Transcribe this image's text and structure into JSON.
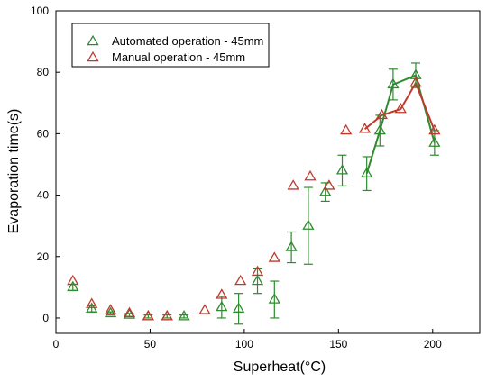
{
  "chart_data": {
    "type": "scatter",
    "xlabel": "Superheat(°C)",
    "ylabel": "Evaporation time(s)",
    "xlim": [
      0,
      225
    ],
    "ylim": [
      -5,
      100
    ],
    "xticks": [
      0,
      50,
      100,
      150,
      200
    ],
    "yticks": [
      0,
      20,
      40,
      60,
      80,
      100
    ],
    "grid": false,
    "legend_position": "top-left",
    "series": [
      {
        "name": "Automated operation - 45mm",
        "color": "#2e8b2e",
        "marker": "triangle-open",
        "points": [
          {
            "x": 9,
            "y": 10,
            "err": 1
          },
          {
            "x": 19,
            "y": 3,
            "err": 1
          },
          {
            "x": 29,
            "y": 1.5,
            "err": 0.5
          },
          {
            "x": 39,
            "y": 1,
            "err": 0.5
          },
          {
            "x": 49,
            "y": 0.5,
            "err": 0.5
          },
          {
            "x": 59,
            "y": 0.5,
            "err": 0.5
          },
          {
            "x": 68,
            "y": 0.5,
            "err": 0.5
          },
          {
            "x": 88,
            "y": 3.5,
            "err": 3.5
          },
          {
            "x": 97,
            "y": 3,
            "err": 5
          },
          {
            "x": 107,
            "y": 12,
            "err": 4
          },
          {
            "x": 116,
            "y": 6,
            "err": 6
          },
          {
            "x": 125,
            "y": 23,
            "err": 5
          },
          {
            "x": 134,
            "y": 30,
            "err": 12.5
          },
          {
            "x": 143,
            "y": 41,
            "err": 3
          },
          {
            "x": 152,
            "y": 48,
            "err": 5
          },
          {
            "x": 165,
            "y": 47,
            "err": 5.5
          },
          {
            "x": 172,
            "y": 61,
            "err": 5
          },
          {
            "x": 179,
            "y": 76,
            "err": 5
          },
          {
            "x": 191,
            "y": 79,
            "err": 4
          },
          {
            "x": 201,
            "y": 57,
            "err": 4
          }
        ]
      },
      {
        "name": "Manual operation - 45mm",
        "color": "#c0392b",
        "marker": "triangle-open",
        "points": [
          {
            "x": 9,
            "y": 12
          },
          {
            "x": 19,
            "y": 4.5
          },
          {
            "x": 29,
            "y": 2.5
          },
          {
            "x": 39,
            "y": 1.5
          },
          {
            "x": 49,
            "y": 0.5
          },
          {
            "x": 59,
            "y": 0.5
          },
          {
            "x": 79,
            "y": 2.5
          },
          {
            "x": 88,
            "y": 7.5
          },
          {
            "x": 98,
            "y": 12
          },
          {
            "x": 107,
            "y": 15
          },
          {
            "x": 116,
            "y": 19.5
          },
          {
            "x": 126,
            "y": 43
          },
          {
            "x": 135,
            "y": 46
          },
          {
            "x": 145,
            "y": 43
          },
          {
            "x": 154,
            "y": 61
          },
          {
            "x": 164,
            "y": 61.5
          },
          {
            "x": 173,
            "y": 66
          },
          {
            "x": 183,
            "y": 68
          },
          {
            "x": 191,
            "y": 76.5
          },
          {
            "x": 201,
            "y": 61
          }
        ]
      }
    ],
    "connecting_lines": [
      {
        "series": "Automated operation - 45mm",
        "color": "#2e8b2e",
        "points": [
          [
            165,
            47
          ],
          [
            172,
            61
          ],
          [
            179,
            76
          ],
          [
            191,
            79
          ],
          [
            201,
            57
          ]
        ]
      },
      {
        "series": "Manual operation - 45mm",
        "color": "#c0392b",
        "points": [
          [
            164,
            61.5
          ],
          [
            173,
            66
          ],
          [
            183,
            68
          ],
          [
            191,
            76.5
          ],
          [
            201,
            61
          ]
        ]
      }
    ]
  }
}
